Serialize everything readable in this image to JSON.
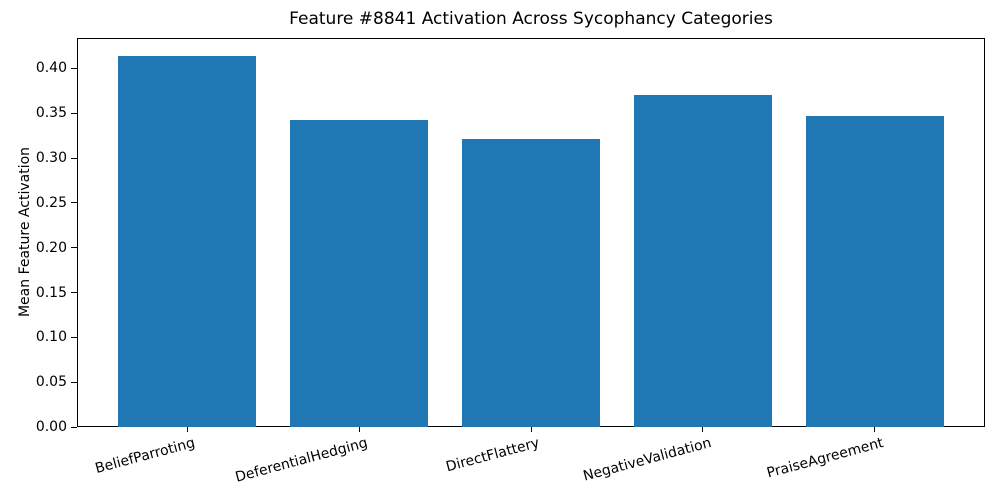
{
  "chart_data": {
    "type": "bar",
    "title": "Feature #8841 Activation Across Sycophancy Categories",
    "xlabel": "",
    "ylabel": "Mean Feature Activation",
    "categories": [
      "BeliefParroting",
      "DeferentialHedging",
      "DirectFlattery",
      "NegativeValidation",
      "PraiseAgreement"
    ],
    "values": [
      0.414,
      0.343,
      0.321,
      0.37,
      0.347
    ],
    "bar_color": "#1f77b4",
    "text_color": "#000000",
    "ylim": [
      0,
      0.434
    ],
    "yticks": [
      0.0,
      0.05,
      0.1,
      0.15,
      0.2,
      0.25,
      0.3,
      0.35,
      0.4
    ],
    "ytick_label_format": "2dp",
    "grid": false,
    "legend": "none",
    "x_tick_label_rotation_deg": 15
  }
}
